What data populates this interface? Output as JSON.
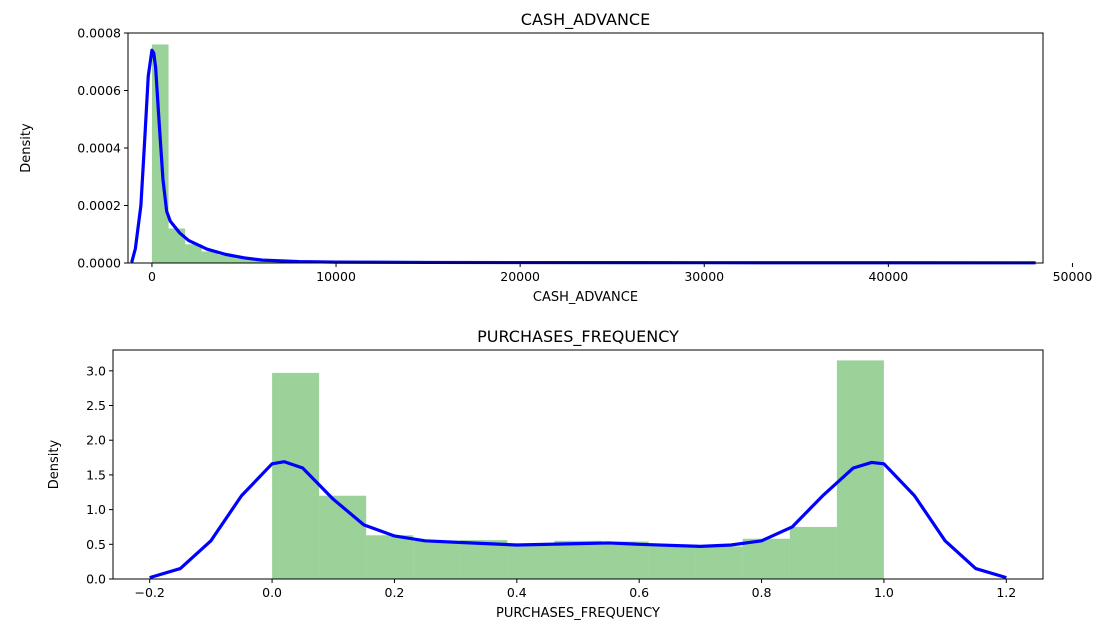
{
  "chart_data": [
    {
      "type": "histogram_kde",
      "title": "CASH_ADVANCE",
      "xlabel": "CASH_ADVANCE",
      "ylabel": "Density",
      "xlim": [
        -1300,
        48400
      ],
      "ylim": [
        0,
        0.0008
      ],
      "x_ticks": [
        0,
        10000,
        20000,
        30000,
        40000,
        50000
      ],
      "x_tick_labels": [
        "0",
        "10000",
        "20000",
        "30000",
        "40000",
        "50000"
      ],
      "y_ticks": [
        0,
        0.0002,
        0.0004,
        0.0006,
        0.0008
      ],
      "y_tick_labels": [
        "0.0000",
        "0.0002",
        "0.0004",
        "0.0006",
        "0.0008"
      ],
      "grid": false,
      "colors": {
        "histogram": "#2ca02c",
        "kde": "#0000ff"
      },
      "histogram": {
        "bins": [
          {
            "x0": 0,
            "x1": 903,
            "density": 0.00076
          },
          {
            "x0": 903,
            "x1": 1806,
            "density": 0.00012
          },
          {
            "x0": 1806,
            "x1": 2709,
            "density": 6.5e-05
          },
          {
            "x0": 2709,
            "x1": 3612,
            "density": 4e-05
          },
          {
            "x0": 3612,
            "x1": 4515,
            "density": 2.8e-05
          },
          {
            "x0": 4515,
            "x1": 5418,
            "density": 1.7e-05
          },
          {
            "x0": 5418,
            "x1": 6321,
            "density": 1.1e-05
          },
          {
            "x0": 6321,
            "x1": 7224,
            "density": 7e-06
          },
          {
            "x0": 7224,
            "x1": 8127,
            "density": 5e-06
          },
          {
            "x0": 8127,
            "x1": 9030,
            "density": 3e-06
          },
          {
            "x0": 9030,
            "x1": 9933,
            "density": 2e-06
          },
          {
            "x0": 9933,
            "x1": 10836,
            "density": 1.5e-06
          }
        ]
      },
      "kde": {
        "x": [
          -1100,
          -900,
          -600,
          -400,
          -200,
          0,
          100,
          200,
          400,
          600,
          800,
          1000,
          1500,
          2000,
          3000,
          4000,
          5000,
          6000,
          8000,
          10000,
          15000,
          20000,
          30000,
          40000,
          48000
        ],
        "y": [
          2e-06,
          5e-05,
          0.0002,
          0.00042,
          0.00065,
          0.00074,
          0.00073,
          0.00068,
          0.00048,
          0.00029,
          0.00018,
          0.000145,
          0.000105,
          7.8e-05,
          4.8e-05,
          3e-05,
          1.8e-05,
          1e-05,
          5e-06,
          3e-06,
          2e-06,
          1.5e-06,
          1e-06,
          8e-07,
          6e-07
        ]
      }
    },
    {
      "type": "histogram_kde",
      "title": "PURCHASES_FREQUENCY",
      "xlabel": "PURCHASES_FREQUENCY",
      "ylabel": "Density",
      "xlim": [
        -0.26,
        1.26
      ],
      "ylim": [
        0,
        3.3
      ],
      "x_ticks": [
        -0.2,
        0.0,
        0.2,
        0.4,
        0.6,
        0.8,
        1.0,
        1.2
      ],
      "x_tick_labels": [
        "−0.2",
        "0.0",
        "0.2",
        "0.4",
        "0.6",
        "0.8",
        "1.0",
        "1.2"
      ],
      "y_ticks": [
        0.0,
        0.5,
        1.0,
        1.5,
        2.0,
        2.5,
        3.0
      ],
      "y_tick_labels": [
        "0.0",
        "0.5",
        "1.0",
        "1.5",
        "2.0",
        "2.5",
        "3.0"
      ],
      "grid": false,
      "colors": {
        "histogram": "#2ca02c",
        "kde": "#0000ff"
      },
      "histogram": {
        "bins": [
          {
            "x0": 0.0,
            "x1": 0.0769,
            "density": 2.97
          },
          {
            "x0": 0.0769,
            "x1": 0.1538,
            "density": 1.2
          },
          {
            "x0": 0.1538,
            "x1": 0.2308,
            "density": 0.63
          },
          {
            "x0": 0.2308,
            "x1": 0.3077,
            "density": 0.55
          },
          {
            "x0": 0.3077,
            "x1": 0.3846,
            "density": 0.56
          },
          {
            "x0": 0.3846,
            "x1": 0.4615,
            "density": 0.48
          },
          {
            "x0": 0.4615,
            "x1": 0.5385,
            "density": 0.55
          },
          {
            "x0": 0.5385,
            "x1": 0.6154,
            "density": 0.54
          },
          {
            "x0": 0.6154,
            "x1": 0.6923,
            "density": 0.48
          },
          {
            "x0": 0.6923,
            "x1": 0.7692,
            "density": 0.47
          },
          {
            "x0": 0.7692,
            "x1": 0.8462,
            "density": 0.58
          },
          {
            "x0": 0.8462,
            "x1": 0.9231,
            "density": 0.75
          },
          {
            "x0": 0.9231,
            "x1": 1.0,
            "density": 3.15
          }
        ]
      },
      "kde": {
        "x": [
          -0.2,
          -0.15,
          -0.1,
          -0.05,
          0.0,
          0.02,
          0.05,
          0.1,
          0.15,
          0.2,
          0.25,
          0.3,
          0.4,
          0.5,
          0.55,
          0.6,
          0.7,
          0.75,
          0.8,
          0.85,
          0.9,
          0.95,
          0.98,
          1.0,
          1.05,
          1.1,
          1.15,
          1.2
        ],
        "y": [
          0.02,
          0.15,
          0.55,
          1.2,
          1.66,
          1.69,
          1.6,
          1.15,
          0.78,
          0.62,
          0.55,
          0.53,
          0.49,
          0.51,
          0.52,
          0.5,
          0.47,
          0.49,
          0.55,
          0.75,
          1.2,
          1.6,
          1.68,
          1.66,
          1.2,
          0.55,
          0.15,
          0.02
        ]
      }
    }
  ]
}
